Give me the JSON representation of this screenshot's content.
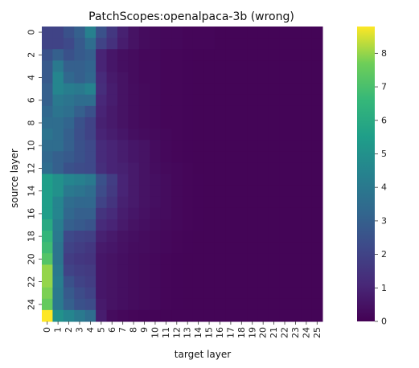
{
  "chart_data": {
    "type": "heatmap",
    "title": "PatchScopes:openalpaca-3b (wrong)",
    "xlabel": "target layer",
    "ylabel": "source layer",
    "x_tick_labels": [
      "0",
      "1",
      "2",
      "3",
      "4",
      "5",
      "6",
      "7",
      "8",
      "9",
      "10",
      "11",
      "12",
      "13",
      "14",
      "15",
      "16",
      "17",
      "18",
      "19",
      "20",
      "21",
      "22",
      "23",
      "24",
      "25"
    ],
    "y_tick_labels": [
      "0",
      "2",
      "4",
      "6",
      "8",
      "10",
      "12",
      "14",
      "16",
      "18",
      "20",
      "22",
      "24"
    ],
    "colorbar_ticks": [
      "0",
      "1",
      "2",
      "3",
      "4",
      "5",
      "6",
      "7",
      "8"
    ],
    "vmin": 0,
    "vmax": 8.8,
    "colormap": "viridis",
    "rows": 26,
    "cols": 26,
    "values": [
      [
        2.0,
        2.0,
        2.5,
        3.0,
        4.3,
        2.5,
        1.6,
        0.9,
        0.5,
        0.3,
        0.25,
        0.2,
        0.2,
        0.15,
        0.15,
        0.15,
        0.1,
        0.1,
        0.1,
        0.1,
        0.1,
        0.1,
        0.1,
        0.1,
        0.1,
        0.1
      ],
      [
        2.0,
        2.0,
        2.2,
        2.8,
        3.5,
        2.0,
        1.4,
        0.8,
        0.5,
        0.3,
        0.25,
        0.2,
        0.2,
        0.15,
        0.15,
        0.15,
        0.1,
        0.1,
        0.1,
        0.1,
        0.1,
        0.1,
        0.1,
        0.1,
        0.1,
        0.1
      ],
      [
        2.5,
        3.0,
        2.5,
        2.8,
        3.0,
        1.0,
        0.6,
        0.4,
        0.3,
        0.2,
        0.2,
        0.15,
        0.15,
        0.12,
        0.1,
        0.1,
        0.1,
        0.1,
        0.1,
        0.1,
        0.1,
        0.1,
        0.1,
        0.1,
        0.1,
        0.1
      ],
      [
        2.8,
        4.0,
        3.0,
        3.0,
        3.2,
        1.0,
        0.6,
        0.4,
        0.3,
        0.2,
        0.2,
        0.15,
        0.15,
        0.12,
        0.1,
        0.1,
        0.1,
        0.1,
        0.1,
        0.1,
        0.1,
        0.1,
        0.1,
        0.1,
        0.1,
        0.1
      ],
      [
        2.8,
        4.5,
        3.3,
        3.0,
        3.3,
        1.2,
        0.7,
        0.5,
        0.3,
        0.2,
        0.2,
        0.15,
        0.15,
        0.12,
        0.1,
        0.1,
        0.1,
        0.1,
        0.1,
        0.1,
        0.1,
        0.1,
        0.1,
        0.1,
        0.1,
        0.1
      ],
      [
        3.0,
        4.5,
        4.2,
        4.0,
        4.4,
        1.3,
        0.8,
        0.5,
        0.35,
        0.25,
        0.2,
        0.15,
        0.15,
        0.12,
        0.1,
        0.1,
        0.1,
        0.1,
        0.1,
        0.1,
        0.1,
        0.1,
        0.1,
        0.1,
        0.1,
        0.1
      ],
      [
        3.0,
        4.0,
        3.8,
        3.5,
        3.5,
        1.1,
        0.8,
        0.5,
        0.35,
        0.25,
        0.2,
        0.15,
        0.15,
        0.12,
        0.1,
        0.1,
        0.1,
        0.1,
        0.1,
        0.1,
        0.1,
        0.1,
        0.1,
        0.1,
        0.1,
        0.1
      ],
      [
        3.3,
        3.8,
        3.6,
        3.0,
        2.5,
        1.0,
        0.7,
        0.5,
        0.35,
        0.25,
        0.2,
        0.15,
        0.15,
        0.12,
        0.1,
        0.1,
        0.1,
        0.1,
        0.1,
        0.1,
        0.1,
        0.1,
        0.1,
        0.1,
        0.1,
        0.1
      ],
      [
        3.5,
        3.5,
        3.2,
        2.5,
        2.0,
        0.9,
        0.7,
        0.5,
        0.35,
        0.25,
        0.2,
        0.15,
        0.15,
        0.12,
        0.1,
        0.1,
        0.1,
        0.1,
        0.1,
        0.1,
        0.1,
        0.1,
        0.1,
        0.1,
        0.1,
        0.1
      ],
      [
        3.8,
        3.5,
        3.0,
        2.4,
        2.0,
        1.0,
        0.8,
        0.6,
        0.4,
        0.3,
        0.25,
        0.2,
        0.15,
        0.12,
        0.1,
        0.1,
        0.1,
        0.1,
        0.1,
        0.1,
        0.1,
        0.1,
        0.1,
        0.1,
        0.1,
        0.1
      ],
      [
        3.5,
        3.5,
        3.0,
        2.5,
        2.2,
        1.2,
        1.0,
        0.8,
        0.6,
        0.5,
        0.3,
        0.2,
        0.15,
        0.12,
        0.1,
        0.1,
        0.1,
        0.1,
        0.1,
        0.1,
        0.1,
        0.1,
        0.1,
        0.1,
        0.1,
        0.1
      ],
      [
        3.3,
        3.0,
        2.8,
        2.5,
        2.2,
        1.2,
        1.0,
        0.8,
        0.6,
        0.5,
        0.3,
        0.2,
        0.15,
        0.12,
        0.1,
        0.1,
        0.1,
        0.1,
        0.1,
        0.1,
        0.1,
        0.1,
        0.1,
        0.1,
        0.1,
        0.1
      ],
      [
        3.5,
        3.0,
        2.5,
        2.3,
        2.2,
        1.3,
        1.0,
        0.9,
        0.7,
        0.5,
        0.35,
        0.25,
        0.2,
        0.15,
        0.1,
        0.1,
        0.1,
        0.1,
        0.1,
        0.1,
        0.1,
        0.1,
        0.1,
        0.1,
        0.1,
        0.1
      ],
      [
        5.5,
        5.0,
        4.5,
        4.3,
        4.0,
        2.5,
        1.8,
        1.0,
        0.7,
        0.5,
        0.4,
        0.3,
        0.2,
        0.15,
        0.12,
        0.1,
        0.1,
        0.1,
        0.1,
        0.1,
        0.1,
        0.1,
        0.1,
        0.1,
        0.1,
        0.1
      ],
      [
        5.5,
        5.0,
        4.0,
        3.8,
        3.5,
        2.3,
        1.7,
        1.0,
        0.7,
        0.5,
        0.4,
        0.3,
        0.2,
        0.15,
        0.12,
        0.1,
        0.1,
        0.1,
        0.1,
        0.1,
        0.1,
        0.1,
        0.1,
        0.1,
        0.1,
        0.1
      ],
      [
        5.5,
        4.5,
        3.5,
        3.3,
        3.3,
        2.0,
        1.5,
        0.9,
        0.7,
        0.5,
        0.4,
        0.3,
        0.2,
        0.15,
        0.12,
        0.1,
        0.1,
        0.1,
        0.1,
        0.1,
        0.1,
        0.1,
        0.1,
        0.1,
        0.1,
        0.1
      ],
      [
        5.5,
        4.5,
        3.3,
        3.0,
        3.0,
        1.5,
        1.2,
        0.8,
        0.6,
        0.45,
        0.35,
        0.3,
        0.2,
        0.15,
        0.12,
        0.1,
        0.1,
        0.1,
        0.1,
        0.1,
        0.1,
        0.1,
        0.1,
        0.1,
        0.1,
        0.1
      ],
      [
        6.0,
        4.2,
        3.0,
        2.8,
        2.6,
        1.2,
        1.0,
        0.7,
        0.5,
        0.4,
        0.3,
        0.25,
        0.2,
        0.15,
        0.12,
        0.1,
        0.1,
        0.1,
        0.1,
        0.1,
        0.1,
        0.1,
        0.1,
        0.1,
        0.1,
        0.1
      ],
      [
        6.5,
        4.0,
        2.2,
        2.0,
        1.9,
        0.9,
        0.7,
        0.5,
        0.4,
        0.3,
        0.25,
        0.2,
        0.15,
        0.12,
        0.1,
        0.1,
        0.1,
        0.1,
        0.1,
        0.1,
        0.1,
        0.1,
        0.1,
        0.1,
        0.1,
        0.1
      ],
      [
        6.8,
        3.8,
        2.0,
        1.8,
        1.6,
        0.7,
        0.6,
        0.45,
        0.35,
        0.3,
        0.25,
        0.2,
        0.15,
        0.12,
        0.1,
        0.1,
        0.1,
        0.1,
        0.1,
        0.1,
        0.1,
        0.1,
        0.1,
        0.1,
        0.1,
        0.1
      ],
      [
        7.2,
        3.8,
        1.8,
        1.6,
        1.5,
        0.6,
        0.5,
        0.4,
        0.3,
        0.25,
        0.2,
        0.15,
        0.12,
        0.1,
        0.1,
        0.1,
        0.1,
        0.1,
        0.1,
        0.1,
        0.1,
        0.1,
        0.1,
        0.1,
        0.1,
        0.1
      ],
      [
        8.0,
        4.0,
        2.0,
        1.8,
        1.7,
        0.6,
        0.5,
        0.4,
        0.3,
        0.25,
        0.2,
        0.15,
        0.12,
        0.1,
        0.1,
        0.1,
        0.1,
        0.1,
        0.1,
        0.1,
        0.1,
        0.1,
        0.1,
        0.1,
        0.1,
        0.1
      ],
      [
        8.0,
        4.2,
        2.5,
        2.0,
        1.8,
        0.6,
        0.5,
        0.4,
        0.3,
        0.25,
        0.2,
        0.15,
        0.12,
        0.1,
        0.1,
        0.1,
        0.1,
        0.1,
        0.1,
        0.1,
        0.1,
        0.1,
        0.1,
        0.1,
        0.1,
        0.1
      ],
      [
        7.8,
        4.0,
        2.8,
        2.3,
        2.0,
        0.6,
        0.5,
        0.4,
        0.3,
        0.25,
        0.2,
        0.15,
        0.12,
        0.1,
        0.1,
        0.1,
        0.1,
        0.1,
        0.1,
        0.1,
        0.1,
        0.1,
        0.1,
        0.1,
        0.1,
        0.1
      ],
      [
        7.5,
        4.0,
        3.0,
        2.5,
        2.3,
        0.7,
        0.5,
        0.4,
        0.3,
        0.25,
        0.2,
        0.15,
        0.12,
        0.1,
        0.1,
        0.1,
        0.1,
        0.1,
        0.1,
        0.1,
        0.1,
        0.1,
        0.1,
        0.1,
        0.1,
        0.1
      ],
      [
        8.8,
        5.0,
        4.5,
        4.0,
        3.5,
        0.8,
        0.3,
        0.2,
        0.15,
        0.12,
        0.1,
        0.1,
        0.1,
        0.1,
        0.1,
        0.1,
        0.1,
        0.1,
        0.1,
        0.1,
        0.1,
        0.1,
        0.1,
        0.1,
        0.1,
        0.1
      ]
    ]
  }
}
